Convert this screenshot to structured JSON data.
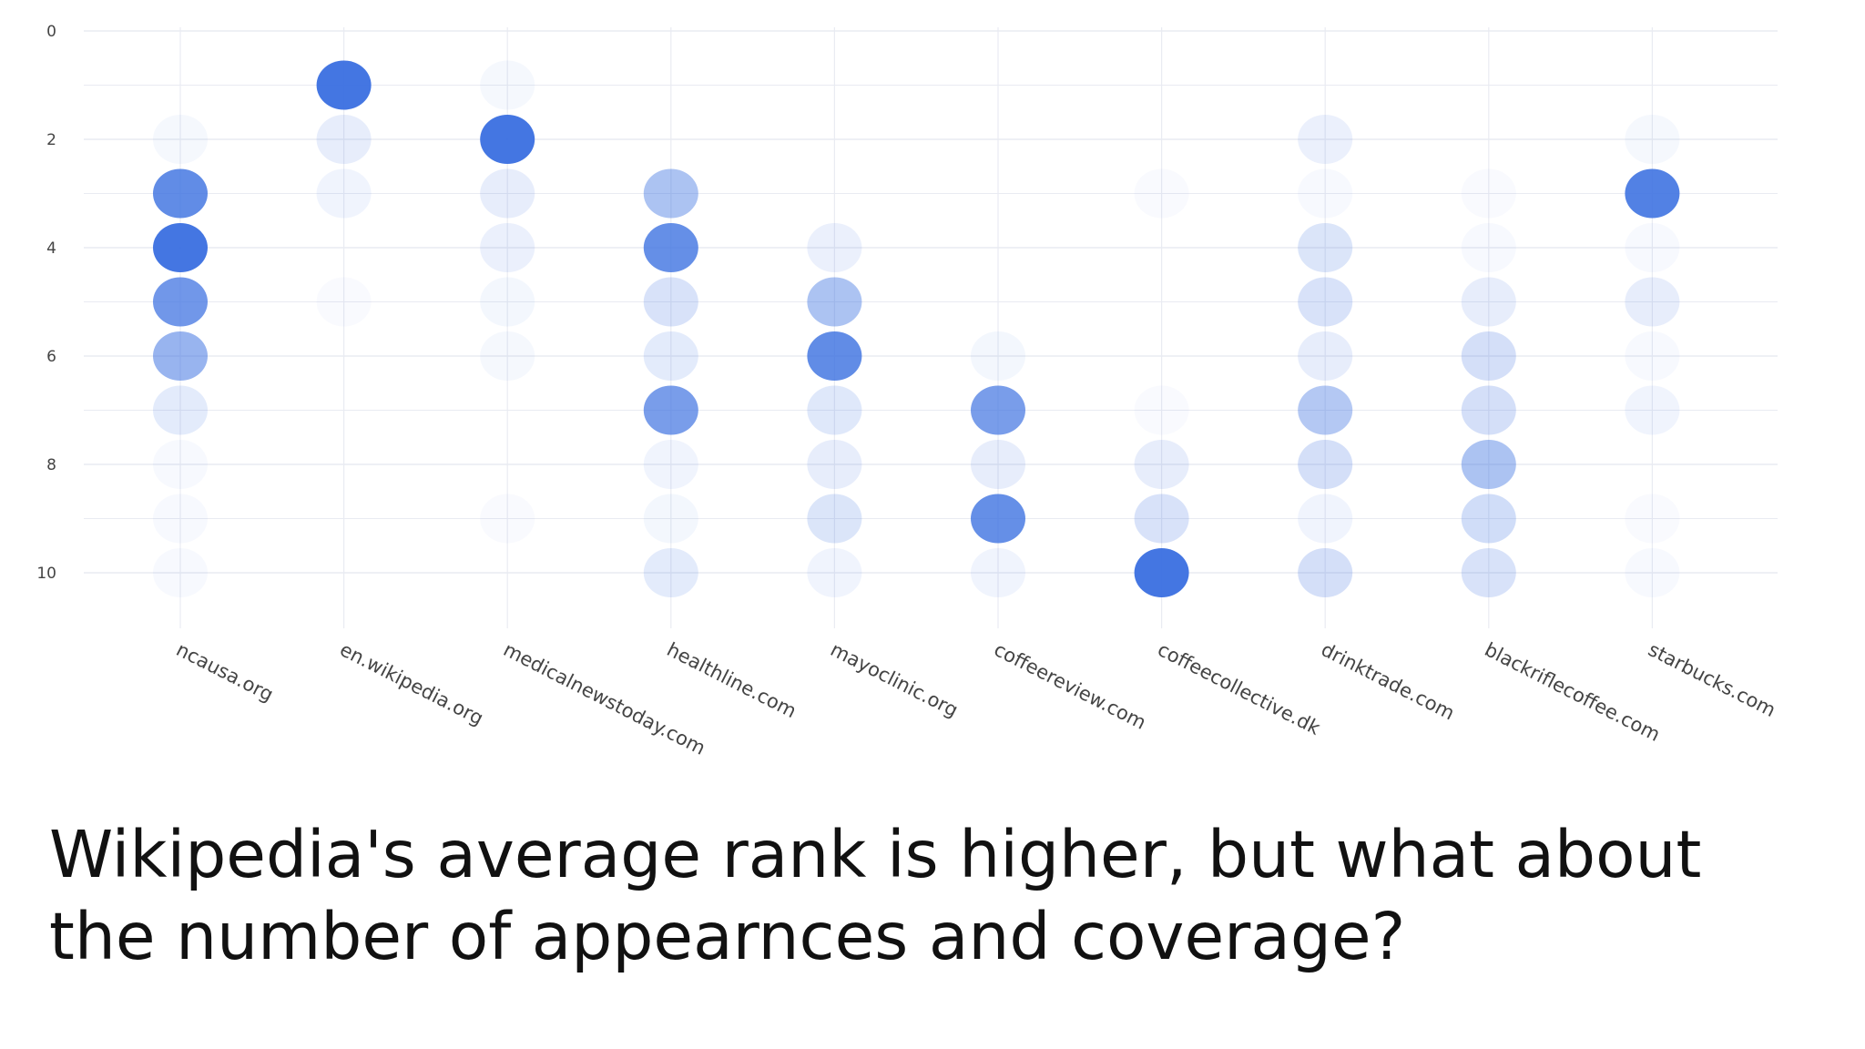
{
  "caption": {
    "line1": "Wikipedia's average rank is higher, but what about",
    "line2": "the number of appearnces and coverage?"
  },
  "colors": {
    "marker": "#3a6fe0",
    "grid": "#e9ebf2",
    "tick_text": "#444444",
    "caption_text": "#111111"
  },
  "chart_data": {
    "type": "scatter",
    "title": "",
    "xlabel": "",
    "ylabel": "",
    "y_reversed": true,
    "ylim": [
      0,
      11
    ],
    "yticks": [
      0,
      2,
      4,
      6,
      8,
      10
    ],
    "grid": true,
    "legend": "none",
    "categories": [
      "ncausa.org",
      "en.wikipedia.org",
      "medicalnewstoday.com",
      "healthline.com",
      "mayoclinic.org",
      "coffeereview.com",
      "coffeecollective.dk",
      "drinktrade.com",
      "blackriflecoffee.com",
      "starbucks.com"
    ],
    "series": [
      {
        "values": [
          {
            "x": "ncausa.org",
            "y": 2,
            "opacity": 0.05
          },
          {
            "x": "ncausa.org",
            "y": 3,
            "opacity": 0.8
          },
          {
            "x": "ncausa.org",
            "y": 4,
            "opacity": 0.95
          },
          {
            "x": "ncausa.org",
            "y": 5,
            "opacity": 0.72
          },
          {
            "x": "ncausa.org",
            "y": 6,
            "opacity": 0.52
          },
          {
            "x": "ncausa.org",
            "y": 7,
            "opacity": 0.14
          },
          {
            "x": "ncausa.org",
            "y": 8,
            "opacity": 0.04
          },
          {
            "x": "ncausa.org",
            "y": 9,
            "opacity": 0.04
          },
          {
            "x": "ncausa.org",
            "y": 10,
            "opacity": 0.04
          },
          {
            "x": "en.wikipedia.org",
            "y": 1,
            "opacity": 0.95
          },
          {
            "x": "en.wikipedia.org",
            "y": 2,
            "opacity": 0.12
          },
          {
            "x": "en.wikipedia.org",
            "y": 3,
            "opacity": 0.08
          },
          {
            "x": "en.wikipedia.org",
            "y": 5,
            "opacity": 0.03
          },
          {
            "x": "medicalnewstoday.com",
            "y": 1,
            "opacity": 0.05
          },
          {
            "x": "medicalnewstoday.com",
            "y": 2,
            "opacity": 0.95
          },
          {
            "x": "medicalnewstoday.com",
            "y": 3,
            "opacity": 0.12
          },
          {
            "x": "medicalnewstoday.com",
            "y": 4,
            "opacity": 0.1
          },
          {
            "x": "medicalnewstoday.com",
            "y": 5,
            "opacity": 0.06
          },
          {
            "x": "medicalnewstoday.com",
            "y": 6,
            "opacity": 0.05
          },
          {
            "x": "medicalnewstoday.com",
            "y": 9,
            "opacity": 0.03
          },
          {
            "x": "healthline.com",
            "y": 3,
            "opacity": 0.42
          },
          {
            "x": "healthline.com",
            "y": 4,
            "opacity": 0.78
          },
          {
            "x": "healthline.com",
            "y": 5,
            "opacity": 0.2
          },
          {
            "x": "healthline.com",
            "y": 6,
            "opacity": 0.14
          },
          {
            "x": "healthline.com",
            "y": 7,
            "opacity": 0.68
          },
          {
            "x": "healthline.com",
            "y": 8,
            "opacity": 0.08
          },
          {
            "x": "healthline.com",
            "y": 9,
            "opacity": 0.06
          },
          {
            "x": "healthline.com",
            "y": 10,
            "opacity": 0.14
          },
          {
            "x": "mayoclinic.org",
            "y": 4,
            "opacity": 0.1
          },
          {
            "x": "mayoclinic.org",
            "y": 5,
            "opacity": 0.42
          },
          {
            "x": "mayoclinic.org",
            "y": 6,
            "opacity": 0.8
          },
          {
            "x": "mayoclinic.org",
            "y": 7,
            "opacity": 0.16
          },
          {
            "x": "mayoclinic.org",
            "y": 8,
            "opacity": 0.12
          },
          {
            "x": "mayoclinic.org",
            "y": 9,
            "opacity": 0.18
          },
          {
            "x": "mayoclinic.org",
            "y": 10,
            "opacity": 0.08
          },
          {
            "x": "coffeereview.com",
            "y": 6,
            "opacity": 0.06
          },
          {
            "x": "coffeereview.com",
            "y": 7,
            "opacity": 0.68
          },
          {
            "x": "coffeereview.com",
            "y": 8,
            "opacity": 0.12
          },
          {
            "x": "coffeereview.com",
            "y": 9,
            "opacity": 0.78
          },
          {
            "x": "coffeereview.com",
            "y": 10,
            "opacity": 0.08
          },
          {
            "x": "coffeecollective.dk",
            "y": 3,
            "opacity": 0.03
          },
          {
            "x": "coffeecollective.dk",
            "y": 7,
            "opacity": 0.03
          },
          {
            "x": "coffeecollective.dk",
            "y": 8,
            "opacity": 0.12
          },
          {
            "x": "coffeecollective.dk",
            "y": 9,
            "opacity": 0.2
          },
          {
            "x": "coffeecollective.dk",
            "y": 10,
            "opacity": 0.95
          },
          {
            "x": "drinktrade.com",
            "y": 2,
            "opacity": 0.1
          },
          {
            "x": "drinktrade.com",
            "y": 3,
            "opacity": 0.04
          },
          {
            "x": "drinktrade.com",
            "y": 4,
            "opacity": 0.18
          },
          {
            "x": "drinktrade.com",
            "y": 5,
            "opacity": 0.2
          },
          {
            "x": "drinktrade.com",
            "y": 6,
            "opacity": 0.12
          },
          {
            "x": "drinktrade.com",
            "y": 7,
            "opacity": 0.38
          },
          {
            "x": "drinktrade.com",
            "y": 8,
            "opacity": 0.22
          },
          {
            "x": "drinktrade.com",
            "y": 9,
            "opacity": 0.08
          },
          {
            "x": "drinktrade.com",
            "y": 10,
            "opacity": 0.22
          },
          {
            "x": "blackriflecoffee.com",
            "y": 3,
            "opacity": 0.03
          },
          {
            "x": "blackriflecoffee.com",
            "y": 4,
            "opacity": 0.04
          },
          {
            "x": "blackriflecoffee.com",
            "y": 5,
            "opacity": 0.12
          },
          {
            "x": "blackriflecoffee.com",
            "y": 6,
            "opacity": 0.22
          },
          {
            "x": "blackriflecoffee.com",
            "y": 7,
            "opacity": 0.22
          },
          {
            "x": "blackriflecoffee.com",
            "y": 8,
            "opacity": 0.42
          },
          {
            "x": "blackriflecoffee.com",
            "y": 9,
            "opacity": 0.24
          },
          {
            "x": "blackriflecoffee.com",
            "y": 10,
            "opacity": 0.2
          },
          {
            "x": "starbucks.com",
            "y": 2,
            "opacity": 0.05
          },
          {
            "x": "starbucks.com",
            "y": 3,
            "opacity": 0.88
          },
          {
            "x": "starbucks.com",
            "y": 4,
            "opacity": 0.04
          },
          {
            "x": "starbucks.com",
            "y": 5,
            "opacity": 0.12
          },
          {
            "x": "starbucks.com",
            "y": 6,
            "opacity": 0.04
          },
          {
            "x": "starbucks.com",
            "y": 7,
            "opacity": 0.08
          },
          {
            "x": "starbucks.com",
            "y": 9,
            "opacity": 0.03
          },
          {
            "x": "starbucks.com",
            "y": 10,
            "opacity": 0.04
          }
        ]
      }
    ]
  }
}
